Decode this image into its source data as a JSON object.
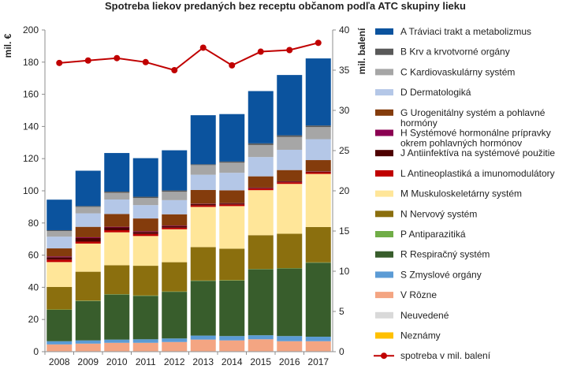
{
  "chart_data": {
    "type": "bar",
    "stacked": true,
    "title": "Spotreba liekov predaných bez receptu občanom podľa ATC skupiny lieku",
    "ylabel": "mil. €",
    "y2label": "mil. balení",
    "ylim": [
      0,
      200
    ],
    "y2lim": [
      0,
      40
    ],
    "yticks": [
      "0",
      "20",
      "40",
      "60",
      "80",
      "100",
      "120",
      "140",
      "160",
      "180",
      "200"
    ],
    "y2ticks": [
      "0",
      "5",
      "10",
      "15",
      "20",
      "25",
      "30",
      "35",
      "40"
    ],
    "grid": false,
    "legend_position": "right",
    "categories": [
      "2008",
      "2009",
      "2010",
      "2011",
      "2012",
      "2013",
      "2014",
      "2015",
      "2016",
      "2017"
    ],
    "series": [
      {
        "name": "Neznámy",
        "color": "#ffc000",
        "values": [
          0,
          0,
          0,
          0,
          0,
          0,
          0,
          0,
          0,
          0
        ]
      },
      {
        "name": "Neuvedené",
        "color": "#d9d9d9",
        "values": [
          0.3,
          0.3,
          0.3,
          0.3,
          0.3,
          0.3,
          0.3,
          0.3,
          0.3,
          0.3
        ]
      },
      {
        "name": "V Rôzne",
        "color": "#f4a582",
        "values": [
          4.2,
          4.7,
          5.2,
          5.2,
          5.7,
          7.2,
          6.7,
          7.4,
          6.2,
          6.2
        ]
      },
      {
        "name": "S Zmyslové orgány",
        "color": "#5b9bd5",
        "values": [
          2,
          2,
          2,
          2.2,
          2.2,
          2.5,
          2.7,
          2.5,
          3.2,
          2.8
        ]
      },
      {
        "name": "R Respiračný systém",
        "color": "#385d2c",
        "values": [
          19.5,
          24.5,
          28,
          27,
          29,
          34,
          34.5,
          41,
          42,
          46
        ]
      },
      {
        "name": "P Antiparazitiká",
        "color": "#70ad47",
        "values": [
          0.2,
          0.2,
          0.2,
          0.2,
          0.2,
          0.2,
          0.2,
          0.2,
          0.2,
          0.2
        ]
      },
      {
        "name": "N Nervový systém",
        "color": "#8b6f0e",
        "values": [
          14,
          18,
          18,
          18.5,
          18.2,
          20.8,
          19.6,
          21,
          21.4,
          22
        ]
      },
      {
        "name": "M Muskuloskeletárny systém",
        "color": "#ffe699",
        "values": [
          15.5,
          17.5,
          20.5,
          18.5,
          20.5,
          25,
          26.5,
          28,
          31,
          33
        ]
      },
      {
        "name": "L Antineoplastiká a imunomodulátory",
        "color": "#c00000",
        "values": [
          1.5,
          1.2,
          1.3,
          1.3,
          1,
          1,
          1,
          1,
          1,
          1
        ]
      },
      {
        "name": "J Antiinfektíva na systémové použitie",
        "color": "#4d0000",
        "values": [
          1.5,
          2.2,
          1.7,
          1.2,
          1,
          0.8,
          0.6,
          0.4,
          0.4,
          0.4
        ]
      },
      {
        "name": "H Systémové hormonálne prípravky okrem pohlavných hormónov",
        "color": "#8b0052",
        "values": [
          0.5,
          0.5,
          0.4,
          0.4,
          0.3,
          0.2,
          0.2,
          0.2,
          0.2,
          0.2
        ]
      },
      {
        "name": "G Urogenitálny systém a pohlavné hormóny",
        "color": "#843c0c",
        "values": [
          5,
          6.5,
          8,
          8,
          7,
          8.5,
          8,
          7,
          7,
          7
        ]
      },
      {
        "name": "D Dermatologiká",
        "color": "#b4c7e7",
        "values": [
          7.3,
          8.4,
          9,
          8.3,
          8.8,
          9.5,
          10.9,
          12,
          12.6,
          13
        ]
      },
      {
        "name": "C Kardiovaskulárny systém",
        "color": "#a6a6a6",
        "values": [
          3.5,
          4,
          4.2,
          4.4,
          5.2,
          6,
          6.3,
          7.5,
          8,
          7.5
        ]
      },
      {
        "name": "B Krv a krvotvorné orgány",
        "color": "#595959",
        "values": [
          0.5,
          0.5,
          0.7,
          0.8,
          0.8,
          0.5,
          0.7,
          1,
          1,
          1
        ]
      },
      {
        "name": "A Tráviaci trakt a metabolizmus",
        "color": "#0b539e",
        "values": [
          19,
          22,
          24,
          24,
          25,
          30.5,
          29.5,
          32.5,
          37.5,
          41.7
        ]
      }
    ],
    "line_series": {
      "name": "spotreba v mil. balení",
      "color": "#c00000",
      "axis": "right",
      "values": [
        35.9,
        36.2,
        36.5,
        36,
        35,
        37.8,
        35.6,
        37.3,
        37.5,
        38.4
      ]
    },
    "legend_order": [
      "A Tráviaci trakt a metabolizmus",
      "B Krv a krvotvorné orgány",
      "C Kardiovaskulárny systém",
      "D Dermatologiká",
      "G Urogenitálny systém a pohlavné hormóny",
      "H Systémové hormonálne prípravky okrem pohlavných hormónov",
      "J Antiinfektíva na systémové použitie",
      "L Antineoplastiká a imunomodulátory",
      "M Muskuloskeletárny systém",
      "N Nervový systém",
      "P Antiparazitiká",
      "R Respiračný systém",
      "S Zmyslové orgány",
      "V Rôzne",
      "Neuvedené",
      "Neznámy",
      "spotreba v mil. balení"
    ],
    "legend_lines": {
      "G Urogenitálny systém a pohlavné hormóny": [
        "G Urogenitálny systém a pohlavné",
        "hormóny"
      ],
      "H Systémové hormonálne prípravky okrem pohlavných hormónov": [
        "H Systémové hormonálne prípravky",
        "okrem pohlavných hormónov"
      ],
      "J Antiinfektíva na systémové použitie": [
        "J Antiinfektíva na systémové použitie"
      ]
    }
  }
}
